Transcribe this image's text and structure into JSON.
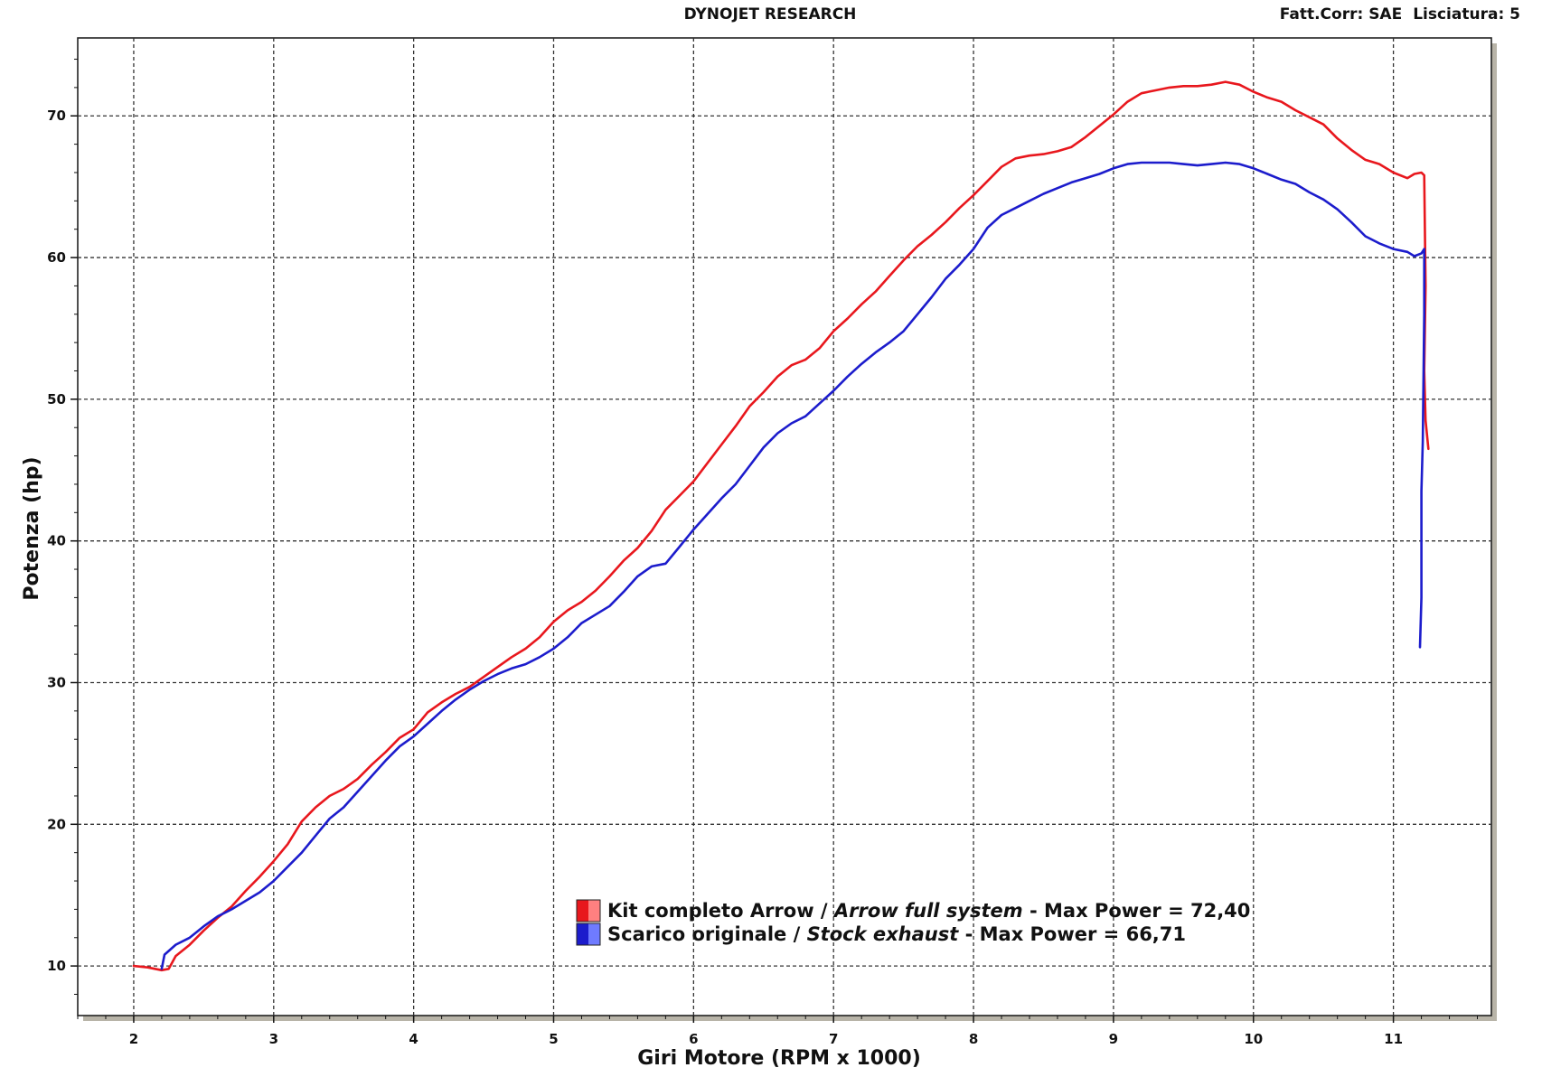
{
  "header": {
    "title": "DYNOJET RESEARCH",
    "correction": "Fatt.Corr: SAE",
    "smoothing": "Lisciatura: 5"
  },
  "chart_data": {
    "type": "line",
    "xlabel": "Giri Motore (RPM x 1000)",
    "ylabel": "Potenza (hp)",
    "xlim": [
      1.6,
      11.7
    ],
    "ylim": [
      6.5,
      75.5
    ],
    "xticks": [
      2,
      3,
      4,
      5,
      6,
      7,
      8,
      9,
      10,
      11
    ],
    "yticks": [
      10,
      20,
      30,
      40,
      50,
      60,
      70
    ],
    "grid": true,
    "legend_position": "bottom-center",
    "series": [
      {
        "name": "Kit completo Arrow / Arrow full system - Max Power = 72,40",
        "name_parts": [
          "Kit completo Arrow / ",
          "Arrow full system",
          " - Max Power = 72,40"
        ],
        "color": "#e8171d",
        "swatch_colors": [
          "#e8171d",
          "#ff8080"
        ],
        "points": [
          [
            2.0,
            10.0
          ],
          [
            2.1,
            9.9
          ],
          [
            2.2,
            9.7
          ],
          [
            2.25,
            9.8
          ],
          [
            2.3,
            10.7
          ],
          [
            2.4,
            11.5
          ],
          [
            2.5,
            12.5
          ],
          [
            2.6,
            13.4
          ],
          [
            2.7,
            14.2
          ],
          [
            2.8,
            15.3
          ],
          [
            2.9,
            16.3
          ],
          [
            3.0,
            17.4
          ],
          [
            3.1,
            18.6
          ],
          [
            3.2,
            20.2
          ],
          [
            3.3,
            21.2
          ],
          [
            3.4,
            22.0
          ],
          [
            3.5,
            22.5
          ],
          [
            3.6,
            23.2
          ],
          [
            3.7,
            24.2
          ],
          [
            3.8,
            25.1
          ],
          [
            3.9,
            26.1
          ],
          [
            4.0,
            26.7
          ],
          [
            4.1,
            27.9
          ],
          [
            4.2,
            28.6
          ],
          [
            4.3,
            29.2
          ],
          [
            4.4,
            29.7
          ],
          [
            4.5,
            30.4
          ],
          [
            4.6,
            31.1
          ],
          [
            4.7,
            31.8
          ],
          [
            4.8,
            32.4
          ],
          [
            4.9,
            33.2
          ],
          [
            5.0,
            34.3
          ],
          [
            5.1,
            35.1
          ],
          [
            5.2,
            35.7
          ],
          [
            5.3,
            36.5
          ],
          [
            5.4,
            37.5
          ],
          [
            5.5,
            38.6
          ],
          [
            5.6,
            39.5
          ],
          [
            5.7,
            40.7
          ],
          [
            5.8,
            42.2
          ],
          [
            5.9,
            43.2
          ],
          [
            6.0,
            44.2
          ],
          [
            6.1,
            45.5
          ],
          [
            6.2,
            46.8
          ],
          [
            6.3,
            48.1
          ],
          [
            6.4,
            49.5
          ],
          [
            6.5,
            50.5
          ],
          [
            6.6,
            51.6
          ],
          [
            6.7,
            52.4
          ],
          [
            6.8,
            52.8
          ],
          [
            6.9,
            53.6
          ],
          [
            7.0,
            54.8
          ],
          [
            7.1,
            55.7
          ],
          [
            7.2,
            56.7
          ],
          [
            7.3,
            57.6
          ],
          [
            7.4,
            58.7
          ],
          [
            7.5,
            59.8
          ],
          [
            7.6,
            60.8
          ],
          [
            7.7,
            61.6
          ],
          [
            7.8,
            62.5
          ],
          [
            7.9,
            63.5
          ],
          [
            8.0,
            64.4
          ],
          [
            8.1,
            65.4
          ],
          [
            8.2,
            66.4
          ],
          [
            8.3,
            67.0
          ],
          [
            8.4,
            67.2
          ],
          [
            8.5,
            67.3
          ],
          [
            8.6,
            67.5
          ],
          [
            8.7,
            67.8
          ],
          [
            8.8,
            68.5
          ],
          [
            8.9,
            69.3
          ],
          [
            9.0,
            70.1
          ],
          [
            9.1,
            71.0
          ],
          [
            9.2,
            71.6
          ],
          [
            9.3,
            71.8
          ],
          [
            9.4,
            72.0
          ],
          [
            9.5,
            72.1
          ],
          [
            9.6,
            72.1
          ],
          [
            9.7,
            72.2
          ],
          [
            9.8,
            72.4
          ],
          [
            9.9,
            72.2
          ],
          [
            10.0,
            71.7
          ],
          [
            10.1,
            71.3
          ],
          [
            10.2,
            71.0
          ],
          [
            10.3,
            70.4
          ],
          [
            10.4,
            69.9
          ],
          [
            10.5,
            69.4
          ],
          [
            10.6,
            68.4
          ],
          [
            10.7,
            67.6
          ],
          [
            10.8,
            66.9
          ],
          [
            10.9,
            66.6
          ],
          [
            11.0,
            66.0
          ],
          [
            11.1,
            65.6
          ],
          [
            11.15,
            65.9
          ],
          [
            11.2,
            66.0
          ],
          [
            11.22,
            65.8
          ],
          [
            11.23,
            58.0
          ],
          [
            11.22,
            52.0
          ],
          [
            11.23,
            48.5
          ],
          [
            11.25,
            46.5
          ]
        ]
      },
      {
        "name": "Scarico originale / Stock exhaust - Max Power = 66,71",
        "name_parts": [
          "Scarico originale / ",
          "Stock exhaust",
          " - Max Power = 66,71"
        ],
        "color": "#1c1ccc",
        "swatch_colors": [
          "#1c1ccc",
          "#6f7bff"
        ],
        "points": [
          [
            2.2,
            9.8
          ],
          [
            2.22,
            10.8
          ],
          [
            2.3,
            11.5
          ],
          [
            2.4,
            12.0
          ],
          [
            2.5,
            12.8
          ],
          [
            2.6,
            13.5
          ],
          [
            2.7,
            14.0
          ],
          [
            2.8,
            14.6
          ],
          [
            2.9,
            15.2
          ],
          [
            3.0,
            16.0
          ],
          [
            3.1,
            17.0
          ],
          [
            3.2,
            18.0
          ],
          [
            3.3,
            19.2
          ],
          [
            3.4,
            20.4
          ],
          [
            3.5,
            21.2
          ],
          [
            3.6,
            22.3
          ],
          [
            3.7,
            23.4
          ],
          [
            3.8,
            24.5
          ],
          [
            3.9,
            25.5
          ],
          [
            4.0,
            26.2
          ],
          [
            4.1,
            27.1
          ],
          [
            4.2,
            28.0
          ],
          [
            4.3,
            28.8
          ],
          [
            4.4,
            29.5
          ],
          [
            4.5,
            30.1
          ],
          [
            4.6,
            30.6
          ],
          [
            4.7,
            31.0
          ],
          [
            4.8,
            31.3
          ],
          [
            4.9,
            31.8
          ],
          [
            5.0,
            32.4
          ],
          [
            5.1,
            33.2
          ],
          [
            5.2,
            34.2
          ],
          [
            5.3,
            34.8
          ],
          [
            5.4,
            35.4
          ],
          [
            5.5,
            36.4
          ],
          [
            5.6,
            37.5
          ],
          [
            5.7,
            38.2
          ],
          [
            5.8,
            38.4
          ],
          [
            5.9,
            39.6
          ],
          [
            6.0,
            40.8
          ],
          [
            6.1,
            41.9
          ],
          [
            6.2,
            43.0
          ],
          [
            6.3,
            44.0
          ],
          [
            6.4,
            45.3
          ],
          [
            6.5,
            46.6
          ],
          [
            6.6,
            47.6
          ],
          [
            6.7,
            48.3
          ],
          [
            6.8,
            48.8
          ],
          [
            6.9,
            49.7
          ],
          [
            7.0,
            50.6
          ],
          [
            7.1,
            51.6
          ],
          [
            7.2,
            52.5
          ],
          [
            7.3,
            53.3
          ],
          [
            7.4,
            54.0
          ],
          [
            7.5,
            54.8
          ],
          [
            7.6,
            56.0
          ],
          [
            7.7,
            57.2
          ],
          [
            7.8,
            58.5
          ],
          [
            7.9,
            59.5
          ],
          [
            8.0,
            60.6
          ],
          [
            8.1,
            62.1
          ],
          [
            8.2,
            63.0
          ],
          [
            8.3,
            63.5
          ],
          [
            8.4,
            64.0
          ],
          [
            8.5,
            64.5
          ],
          [
            8.6,
            64.9
          ],
          [
            8.7,
            65.3
          ],
          [
            8.8,
            65.6
          ],
          [
            8.9,
            65.9
          ],
          [
            9.0,
            66.3
          ],
          [
            9.1,
            66.6
          ],
          [
            9.2,
            66.7
          ],
          [
            9.3,
            66.7
          ],
          [
            9.4,
            66.7
          ],
          [
            9.5,
            66.6
          ],
          [
            9.6,
            66.5
          ],
          [
            9.7,
            66.6
          ],
          [
            9.8,
            66.7
          ],
          [
            9.9,
            66.6
          ],
          [
            10.0,
            66.3
          ],
          [
            10.1,
            65.9
          ],
          [
            10.2,
            65.5
          ],
          [
            10.3,
            65.2
          ],
          [
            10.4,
            64.6
          ],
          [
            10.5,
            64.1
          ],
          [
            10.6,
            63.4
          ],
          [
            10.7,
            62.5
          ],
          [
            10.8,
            61.5
          ],
          [
            10.9,
            61.0
          ],
          [
            11.0,
            60.6
          ],
          [
            11.1,
            60.4
          ],
          [
            11.15,
            60.1
          ],
          [
            11.2,
            60.3
          ],
          [
            11.22,
            60.6
          ],
          [
            11.22,
            56.0
          ],
          [
            11.21,
            47.0
          ],
          [
            11.2,
            43.5
          ],
          [
            11.2,
            36.0
          ],
          [
            11.19,
            32.5
          ]
        ]
      }
    ]
  }
}
